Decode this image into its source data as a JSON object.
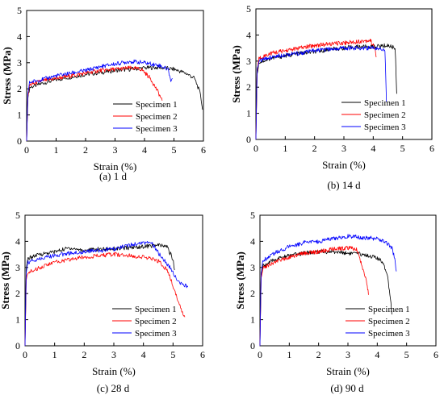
{
  "chart_data": [
    {
      "type": "line",
      "caption": "(a) 1 d",
      "xlabel": "Strain (%)",
      "ylabel": "Stress (MPa)",
      "xlim": [
        0,
        6
      ],
      "ylim": [
        0,
        5
      ],
      "xticks": [
        0,
        1,
        2,
        3,
        4,
        5,
        6
      ],
      "yticks": [
        0,
        1,
        2,
        3,
        4,
        5
      ],
      "legend_position": "bottom-right",
      "series": [
        {
          "name": "Specimen 1",
          "color": "#000000",
          "points": [
            [
              0,
              0
            ],
            [
              0.04,
              1.6
            ],
            [
              0.1,
              2.05
            ],
            [
              0.5,
              2.2
            ],
            [
              1,
              2.35
            ],
            [
              1.5,
              2.45
            ],
            [
              2,
              2.55
            ],
            [
              2.5,
              2.62
            ],
            [
              3,
              2.7
            ],
            [
              3.5,
              2.75
            ],
            [
              4,
              2.8
            ],
            [
              4.5,
              2.82
            ],
            [
              5,
              2.75
            ],
            [
              5.4,
              2.6
            ],
            [
              5.7,
              2.4
            ],
            [
              5.9,
              1.8
            ],
            [
              5.97,
              1.2
            ]
          ]
        },
        {
          "name": "Specimen 2",
          "color": "#ff0000",
          "points": [
            [
              0,
              0
            ],
            [
              0.04,
              1.7
            ],
            [
              0.1,
              2.15
            ],
            [
              0.5,
              2.3
            ],
            [
              1,
              2.4
            ],
            [
              1.5,
              2.5
            ],
            [
              2,
              2.6
            ],
            [
              2.5,
              2.7
            ],
            [
              3,
              2.75
            ],
            [
              3.5,
              2.8
            ],
            [
              3.9,
              2.75
            ],
            [
              4.2,
              2.4
            ],
            [
              4.45,
              1.9
            ],
            [
              4.6,
              1.55
            ]
          ]
        },
        {
          "name": "Specimen 3",
          "color": "#0000ff",
          "points": [
            [
              0,
              0
            ],
            [
              0.04,
              1.8
            ],
            [
              0.1,
              2.25
            ],
            [
              0.5,
              2.35
            ],
            [
              1,
              2.5
            ],
            [
              1.5,
              2.6
            ],
            [
              2,
              2.7
            ],
            [
              2.5,
              2.85
            ],
            [
              3,
              2.95
            ],
            [
              3.5,
              3.05
            ],
            [
              4,
              3.0
            ],
            [
              4.5,
              2.9
            ],
            [
              4.8,
              2.75
            ],
            [
              4.9,
              2.3
            ],
            [
              4.95,
              2.4
            ]
          ]
        }
      ]
    },
    {
      "type": "line",
      "caption": "(b) 14 d",
      "xlabel": "Strain  (%)",
      "ylabel": "Stress (MPa)",
      "xlim": [
        0,
        6
      ],
      "ylim": [
        0,
        5
      ],
      "xticks": [
        0,
        1,
        2,
        3,
        4,
        5,
        6
      ],
      "yticks": [
        0,
        1,
        2,
        3,
        4,
        5
      ],
      "legend_position": "bottom-right",
      "series": [
        {
          "name": "Specimen 1",
          "color": "#000000",
          "points": [
            [
              0,
              0
            ],
            [
              0.04,
              2.5
            ],
            [
              0.1,
              2.95
            ],
            [
              0.5,
              3.1
            ],
            [
              1,
              3.2
            ],
            [
              1.5,
              3.3
            ],
            [
              2,
              3.35
            ],
            [
              2.5,
              3.45
            ],
            [
              3,
              3.5
            ],
            [
              3.5,
              3.55
            ],
            [
              4,
              3.55
            ],
            [
              4.5,
              3.6
            ],
            [
              4.75,
              3.5
            ],
            [
              4.8,
              1.75
            ]
          ]
        },
        {
          "name": "Specimen 2",
          "color": "#ff0000",
          "points": [
            [
              0,
              0
            ],
            [
              0.04,
              2.6
            ],
            [
              0.1,
              3.1
            ],
            [
              0.5,
              3.3
            ],
            [
              1,
              3.4
            ],
            [
              1.5,
              3.5
            ],
            [
              2,
              3.6
            ],
            [
              2.5,
              3.65
            ],
            [
              3,
              3.7
            ],
            [
              3.5,
              3.75
            ],
            [
              3.9,
              3.8
            ],
            [
              4.05,
              3.5
            ],
            [
              4.1,
              3.15
            ]
          ]
        },
        {
          "name": "Specimen 3",
          "color": "#0000ff",
          "points": [
            [
              0,
              0
            ],
            [
              0.04,
              2.7
            ],
            [
              0.1,
              3.0
            ],
            [
              0.5,
              3.15
            ],
            [
              1,
              3.25
            ],
            [
              1.5,
              3.3
            ],
            [
              2,
              3.4
            ],
            [
              2.5,
              3.45
            ],
            [
              3,
              3.5
            ],
            [
              3.5,
              3.5
            ],
            [
              4,
              3.5
            ],
            [
              4.4,
              3.45
            ],
            [
              4.45,
              1.45
            ]
          ]
        }
      ]
    },
    {
      "type": "line",
      "caption": "(c) 28 d",
      "xlabel": "Strain (%)",
      "ylabel": "Stress (MPa)",
      "xlim": [
        0,
        6
      ],
      "ylim": [
        0,
        5
      ],
      "xticks": [
        0,
        1,
        2,
        3,
        4,
        5,
        6
      ],
      "yticks": [
        0,
        1,
        2,
        3,
        4,
        5
      ],
      "legend_position": "bottom-right",
      "series": [
        {
          "name": "Specimen 1",
          "color": "#000000",
          "points": [
            [
              0,
              0
            ],
            [
              0.04,
              2.9
            ],
            [
              0.1,
              3.35
            ],
            [
              0.5,
              3.5
            ],
            [
              1,
              3.6
            ],
            [
              1.5,
              3.75
            ],
            [
              2,
              3.65
            ],
            [
              2.5,
              3.7
            ],
            [
              3,
              3.72
            ],
            [
              3.5,
              3.75
            ],
            [
              4,
              3.8
            ],
            [
              4.5,
              3.85
            ],
            [
              4.8,
              3.8
            ],
            [
              5.0,
              3.3
            ],
            [
              5.05,
              2.9
            ]
          ]
        },
        {
          "name": "Specimen 2",
          "color": "#ff0000",
          "points": [
            [
              0,
              0
            ],
            [
              0.04,
              2.5
            ],
            [
              0.1,
              2.8
            ],
            [
              0.5,
              3.0
            ],
            [
              1,
              3.2
            ],
            [
              1.5,
              3.3
            ],
            [
              2,
              3.4
            ],
            [
              2.5,
              3.45
            ],
            [
              3,
              3.5
            ],
            [
              3.5,
              3.45
            ],
            [
              4,
              3.4
            ],
            [
              4.5,
              3.25
            ],
            [
              4.8,
              2.9
            ],
            [
              5.0,
              2.3
            ],
            [
              5.2,
              1.6
            ],
            [
              5.4,
              1.1
            ]
          ]
        },
        {
          "name": "Specimen 3",
          "color": "#0000ff",
          "points": [
            [
              0,
              0
            ],
            [
              0.04,
              2.8
            ],
            [
              0.1,
              3.2
            ],
            [
              0.5,
              3.35
            ],
            [
              1,
              3.45
            ],
            [
              1.5,
              3.55
            ],
            [
              2,
              3.6
            ],
            [
              2.5,
              3.65
            ],
            [
              3,
              3.7
            ],
            [
              3.5,
              3.85
            ],
            [
              4,
              3.95
            ],
            [
              4.3,
              3.9
            ],
            [
              4.6,
              3.4
            ],
            [
              4.9,
              3.0
            ],
            [
              5.1,
              2.6
            ],
            [
              5.3,
              2.35
            ],
            [
              5.5,
              2.25
            ]
          ]
        }
      ]
    },
    {
      "type": "line",
      "caption": "(d) 90 d",
      "xlabel": "Strain  (%)",
      "ylabel": "Stress (MPa)",
      "xlim": [
        0,
        6
      ],
      "ylim": [
        0,
        5
      ],
      "xticks": [
        0,
        1,
        2,
        3,
        4,
        5,
        6
      ],
      "yticks": [
        0,
        1,
        2,
        3,
        4,
        5
      ],
      "legend_position": "bottom-right",
      "series": [
        {
          "name": "Specimen 1",
          "color": "#000000",
          "points": [
            [
              0,
              0
            ],
            [
              0.04,
              2.7
            ],
            [
              0.1,
              3.05
            ],
            [
              0.5,
              3.3
            ],
            [
              1,
              3.45
            ],
            [
              1.5,
              3.55
            ],
            [
              2,
              3.6
            ],
            [
              2.5,
              3.6
            ],
            [
              3,
              3.55
            ],
            [
              3.5,
              3.5
            ],
            [
              3.9,
              3.4
            ],
            [
              4.2,
              3.2
            ],
            [
              4.35,
              2.7
            ],
            [
              4.45,
              1.8
            ],
            [
              4.5,
              1.2
            ]
          ]
        },
        {
          "name": "Specimen 2",
          "color": "#ff0000",
          "points": [
            [
              0,
              0
            ],
            [
              0.04,
              2.6
            ],
            [
              0.1,
              3.0
            ],
            [
              0.5,
              3.2
            ],
            [
              1,
              3.4
            ],
            [
              1.5,
              3.55
            ],
            [
              2,
              3.6
            ],
            [
              2.5,
              3.7
            ],
            [
              3,
              3.75
            ],
            [
              3.3,
              3.7
            ],
            [
              3.5,
              3.0
            ],
            [
              3.65,
              2.4
            ],
            [
              3.7,
              1.95
            ]
          ]
        },
        {
          "name": "Specimen 3",
          "color": "#0000ff",
          "points": [
            [
              0,
              0
            ],
            [
              0.04,
              2.8
            ],
            [
              0.1,
              3.25
            ],
            [
              0.5,
              3.55
            ],
            [
              1,
              3.8
            ],
            [
              1.5,
              3.95
            ],
            [
              2,
              4.0
            ],
            [
              2.5,
              4.1
            ],
            [
              3,
              4.2
            ],
            [
              3.5,
              4.15
            ],
            [
              4,
              4.1
            ],
            [
              4.3,
              3.95
            ],
            [
              4.5,
              3.75
            ],
            [
              4.6,
              3.3
            ],
            [
              4.65,
              2.85
            ]
          ]
        }
      ]
    }
  ]
}
